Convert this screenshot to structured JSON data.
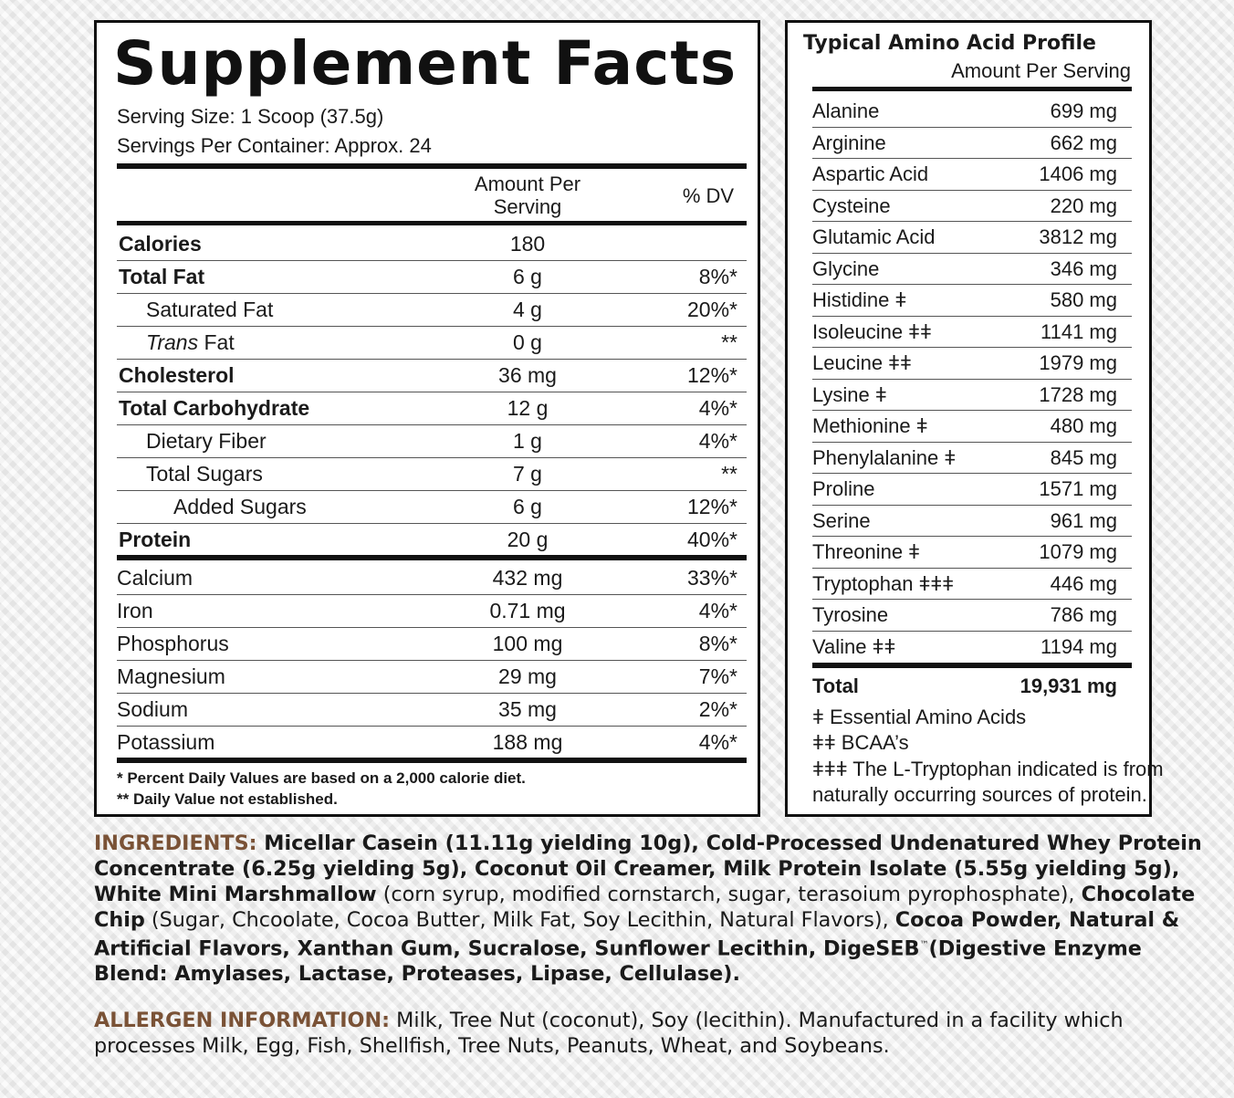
{
  "supplement_facts": {
    "title": "Supplement Facts",
    "serving_size": "Serving Size: 1 Scoop (37.5g)",
    "servings_per_container": "Servings Per Container: Approx. 24",
    "col_amount_line1": "Amount Per",
    "col_amount_line2": "Serving",
    "col_dv": "% DV",
    "rows": [
      {
        "label": "Calories",
        "amount": "180",
        "dv": ""
      },
      {
        "label": "Total Fat",
        "amount": "6 g",
        "dv": "8%*"
      },
      {
        "label": "Saturated Fat",
        "amount": "4 g",
        "dv": "20%*"
      },
      {
        "label": "Trans",
        "label_suffix": " Fat",
        "amount": "0 g",
        "dv": "**"
      },
      {
        "label": "Cholesterol",
        "amount": "36 mg",
        "dv": "12%*"
      },
      {
        "label": "Total Carbohydrate",
        "amount": "12 g",
        "dv": "4%*"
      },
      {
        "label": "Dietary Fiber",
        "amount": "1 g",
        "dv": "4%*"
      },
      {
        "label": "Total Sugars",
        "amount": "7 g",
        "dv": "**"
      },
      {
        "label": "Added Sugars",
        "amount": "6 g",
        "dv": "12%*"
      },
      {
        "label": "Protein",
        "amount": "20 g",
        "dv": "40%*"
      },
      {
        "label": "Calcium",
        "amount": "432 mg",
        "dv": "33%*"
      },
      {
        "label": "Iron",
        "amount": "0.71 mg",
        "dv": "4%*"
      },
      {
        "label": "Phosphorus",
        "amount": "100 mg",
        "dv": "8%*"
      },
      {
        "label": "Magnesium",
        "amount": "29 mg",
        "dv": "7%*"
      },
      {
        "label": "Sodium",
        "amount": "35 mg",
        "dv": "2%*"
      },
      {
        "label": "Potassium",
        "amount": "188 mg",
        "dv": "4%*"
      }
    ],
    "footnote1": "* Percent Daily Values are based on a 2,000 calorie diet.",
    "footnote2": "** Daily Value not established."
  },
  "amino_profile": {
    "title": "Typical Amino Acid Profile",
    "subtitle": "Amount Per Serving",
    "rows": [
      {
        "label": "Alanine",
        "amount": "699 mg"
      },
      {
        "label": "Arginine",
        "amount": "662 mg"
      },
      {
        "label": "Aspartic Acid",
        "amount": "1406 mg"
      },
      {
        "label": "Cysteine",
        "amount": "220 mg"
      },
      {
        "label": "Glutamic Acid",
        "amount": "3812 mg"
      },
      {
        "label": "Glycine",
        "amount": "346 mg"
      },
      {
        "label": "Histidine ǂ",
        "amount": "580 mg"
      },
      {
        "label": "Isoleucine ǂǂ",
        "amount": "1141 mg"
      },
      {
        "label": "Leucine ǂǂ",
        "amount": "1979 mg"
      },
      {
        "label": "Lysine ǂ",
        "amount": "1728 mg"
      },
      {
        "label": "Methionine ǂ",
        "amount": "480 mg"
      },
      {
        "label": "Phenylalanine ǂ",
        "amount": "845 mg"
      },
      {
        "label": "Proline",
        "amount": "1571 mg"
      },
      {
        "label": "Serine",
        "amount": "961 mg"
      },
      {
        "label": "Threonine ǂ",
        "amount": "1079 mg"
      },
      {
        "label": "Tryptophan ǂǂǂ",
        "amount": "446 mg"
      },
      {
        "label": "Tyrosine",
        "amount": "786 mg"
      },
      {
        "label": "Valine ǂǂ",
        "amount": "1194 mg"
      }
    ],
    "total_label": "Total",
    "total_amount": "19,931 mg",
    "note1": "ǂ Essential Amino Acids",
    "note2": "ǂǂ BCAA’s",
    "note3": "ǂǂǂ The L-Tryptophan indicated is from",
    "note4": "naturally occurring sources of protein."
  },
  "ingredients": {
    "heading": "INGREDIENTS:",
    "p1": " Micellar Casein (11.11g yielding 10g), Cold-Processed Undenatured Whey Protein Concentrate (6.25g yielding 5g), Coconut Oil Creamer, Milk Protein Isolate (5.55g yielding 5g), White Mini Marshmallow",
    "p2": " (corn syrup, modified cornstarch, sugar, terasoium pyrophosphate), ",
    "p3": "Chocolate Chip",
    "p4": " (Sugar, Chcoolate, Cocoa Butter, Milk Fat, Soy Lecithin, Natural Flavors), ",
    "p5": "Cocoa Powder, Natural & Artificial Flavors, Xanthan Gum, Sucralose, Sunflower Lecithin, DigeSEB",
    "tm": "™",
    "p6": "(Digestive Enzyme Blend: Amylases, Lactase, Proteases, Lipase, Cellulase)."
  },
  "allergen": {
    "heading": "ALLERGEN INFORMATION:",
    "text": " Milk, Tree Nut (coconut), Soy (lecithin). Manufactured in a facility which processes Milk, Egg, Fish, Shellfish, Tree Nuts, Peanuts, Wheat, and Soybeans."
  }
}
